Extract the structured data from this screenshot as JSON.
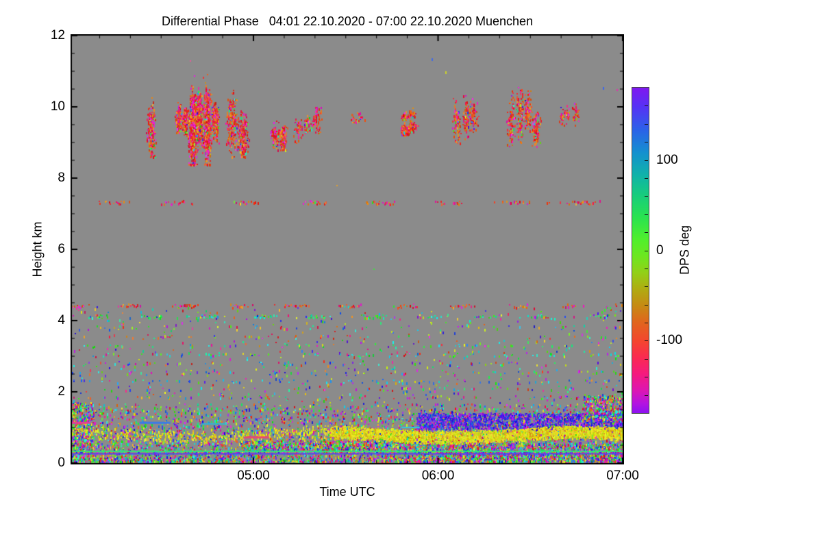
{
  "page": {
    "background": "#ffffff"
  },
  "chart_data": {
    "type": "heatmap",
    "title": "Differential Phase   04:01 22.10.2020 - 07:00 22.10.2020 Muenchen",
    "xlabel": "Time UTC",
    "ylabel": "Height km",
    "x_start": "04:01",
    "x_end": "07:00",
    "x_range_minutes": [
      0,
      179
    ],
    "x_ticks": [
      {
        "t": 59,
        "label": "05:00"
      },
      {
        "t": 119,
        "label": "06:00"
      },
      {
        "t": 179,
        "label": "07:00"
      }
    ],
    "x_minor_first": 9,
    "x_minor_step": 10,
    "y_range_km": [
      0,
      12
    ],
    "y_ticks": [
      0,
      2,
      4,
      6,
      8,
      10,
      12
    ],
    "y_minor_step": 0.5,
    "no_data_color": "#8b8b8b",
    "frame_color": "#000000",
    "colorbar": {
      "label": "DPS deg",
      "range": [
        -180,
        180
      ],
      "ticks": [
        {
          "v": 100,
          "label": "100"
        },
        {
          "v": 0,
          "label": "0"
        },
        {
          "v": -100,
          "label": "-100"
        }
      ],
      "minor_step": 20,
      "gradient": [
        {
          "pos": 0.0,
          "color": "#8018f0"
        },
        {
          "pos": 0.06,
          "color": "#5533f5"
        },
        {
          "pos": 0.13,
          "color": "#2b62e8"
        },
        {
          "pos": 0.2,
          "color": "#1490cf"
        },
        {
          "pos": 0.27,
          "color": "#10b3a8"
        },
        {
          "pos": 0.33,
          "color": "#17cc7d"
        },
        {
          "pos": 0.4,
          "color": "#2ae34f"
        },
        {
          "pos": 0.47,
          "color": "#52ef2b"
        },
        {
          "pos": 0.52,
          "color": "#6ee61f"
        },
        {
          "pos": 0.57,
          "color": "#93cf17"
        },
        {
          "pos": 0.62,
          "color": "#b0ab12"
        },
        {
          "pos": 0.67,
          "color": "#c68a14"
        },
        {
          "pos": 0.72,
          "color": "#e0661d"
        },
        {
          "pos": 0.78,
          "color": "#f4452f"
        },
        {
          "pos": 0.83,
          "color": "#fa2a52"
        },
        {
          "pos": 0.88,
          "color": "#f51a7e"
        },
        {
          "pos": 0.93,
          "color": "#dd16b2"
        },
        {
          "pos": 0.97,
          "color": "#b414e0"
        },
        {
          "pos": 1.0,
          "color": "#8d12f2"
        }
      ]
    },
    "palettes": {
      "warm": {
        "ranges": [
          [
            340,
            380
          ],
          [
            10,
            40
          ],
          [
            300,
            335
          ]
        ],
        "weights": [
          0.4,
          0.3,
          0.2
        ],
        "wild": 0.1
      },
      "any": {
        "ranges": [
          [
            0,
            360
          ]
        ],
        "weights": [
          1
        ],
        "wild": 0
      },
      "yellow": {
        "ranges": [
          [
            50,
            72
          ],
          [
            35,
            50
          ]
        ],
        "weights": [
          0.8,
          0.12
        ],
        "wild": 0.08
      },
      "blue_purple": {
        "ranges": [
          [
            215,
            290
          ]
        ],
        "weights": [
          1
        ],
        "wild": 0.08
      },
      "green_cyan": {
        "ranges": [
          [
            95,
            190
          ]
        ],
        "weights": [
          1
        ],
        "wild": 0.12
      },
      "cyan_blue": {
        "ranges": [
          [
            175,
            235
          ]
        ],
        "weights": [
          1
        ],
        "wild": 0.12
      }
    },
    "features": {
      "clouds": [
        {
          "t0": 24.5,
          "t1": 27.5,
          "h0": 8.6,
          "h1": 10.4,
          "n": 180,
          "streaks": 1
        },
        {
          "t0": 33.5,
          "t1": 37.5,
          "h0": 8.8,
          "h1": 10.2,
          "n": 300,
          "streaks": 2
        },
        {
          "t0": 37.5,
          "t1": 45.0,
          "h0": 8.4,
          "h1": 11.0,
          "n": 1300,
          "streaks": 3
        },
        {
          "t0": 45.0,
          "t1": 47.5,
          "h0": 8.6,
          "h1": 10.3,
          "n": 200,
          "streaks": 1
        },
        {
          "t0": 50.0,
          "t1": 57.0,
          "h0": 8.6,
          "h1": 10.5,
          "n": 430,
          "streaks": 2
        },
        {
          "t0": 64.0,
          "t1": 70.0,
          "h0": 8.8,
          "h1": 9.7,
          "n": 190,
          "streaks": 2
        },
        {
          "t0": 71.5,
          "t1": 81.5,
          "h0": 9.0,
          "h1": 10.0,
          "n": 140,
          "streaks": 3
        },
        {
          "t0": 91.5,
          "t1": 95.5,
          "h0": 9.4,
          "h1": 9.9,
          "n": 25,
          "streaks": 1
        },
        {
          "t0": 106.5,
          "t1": 112.5,
          "h0": 9.2,
          "h1": 9.6,
          "n": 260,
          "streaks": 2
        },
        {
          "t0": 106.5,
          "t1": 112.5,
          "h0": 9.5,
          "h1": 10.0,
          "n": 60,
          "streaks": 2
        },
        {
          "t0": 123.5,
          "t1": 132.0,
          "h0": 9.0,
          "h1": 10.35,
          "n": 240,
          "streaks": 3
        },
        {
          "t0": 141.0,
          "t1": 151.7,
          "h0": 8.9,
          "h1": 10.55,
          "n": 390,
          "streaks": 4
        },
        {
          "t0": 158.0,
          "t1": 164.5,
          "h0": 9.3,
          "h1": 10.25,
          "n": 90,
          "streaks": 3
        }
      ],
      "dots": [
        {
          "t": 117.0,
          "h": 11.35,
          "color": "#3f6ae8"
        },
        {
          "t": 121.5,
          "h": 11.0,
          "color": "#cdd32a"
        },
        {
          "t": 38.5,
          "h": 11.3,
          "color": "#e8589a"
        },
        {
          "t": 98.0,
          "h": 5.45,
          "color": "#44dd44"
        },
        {
          "t": 172.7,
          "h": 10.55,
          "color": "#3a66ee"
        },
        {
          "t": 177.0,
          "h": 10.5,
          "color": "#dd33aa"
        },
        {
          "t": 86.0,
          "h": 7.8,
          "color": "#e0a030"
        }
      ],
      "speckle_lines": [
        {
          "h": 7.32,
          "t0": 0,
          "t1": 179,
          "palette": "warm",
          "density": 0.3,
          "cluster": 11
        },
        {
          "h": 4.42,
          "t0": 0,
          "t1": 179,
          "palette": "warm",
          "density": 0.34,
          "cluster": 9
        },
        {
          "h": 4.12,
          "t0": 0,
          "t1": 179,
          "palette": "green_cyan",
          "density": 0.3,
          "cluster": 9
        },
        {
          "h": 3.82,
          "t0": 0,
          "t1": 179,
          "palette": "any",
          "density": 0.08
        },
        {
          "h": 3.55,
          "t0": 0,
          "t1": 95,
          "palette": "warm",
          "density": 0.1
        },
        {
          "h": 3.3,
          "t0": 0,
          "t1": 179,
          "palette": "green_cyan",
          "density": 0.1
        },
        {
          "h": 3.05,
          "t0": 0,
          "t1": 179,
          "palette": "green_cyan",
          "density": 0.16,
          "cluster": 8
        },
        {
          "h": 2.8,
          "t0": 0,
          "t1": 179,
          "palette": "any",
          "density": 0.14
        },
        {
          "h": 2.55,
          "t0": 0,
          "t1": 179,
          "palette": "any",
          "density": 0.1
        },
        {
          "h": 2.3,
          "t0": 0,
          "t1": 179,
          "palette": "cyan_blue",
          "density": 0.13
        },
        {
          "h": 2.1,
          "t0": 0,
          "t1": 179,
          "palette": "any",
          "density": 0.09
        },
        {
          "h": 1.85,
          "t0": 0,
          "t1": 179,
          "palette": "any",
          "density": 0.17
        },
        {
          "h": 1.62,
          "t0": 0,
          "t1": 179,
          "palette": "any",
          "density": 0.22
        }
      ],
      "sprinkle": {
        "t0": 0,
        "t1": 179,
        "h0": 1.5,
        "h1": 4.4,
        "n": 650,
        "palette": "any"
      },
      "noise_regions": [
        {
          "t0": 0,
          "t1": 179,
          "h0": 0.05,
          "h1": 1.55,
          "n": 5200,
          "palette": "any",
          "bias_low": true
        },
        {
          "t0": 112,
          "t1": 179,
          "h0": 0.95,
          "h1": 1.4,
          "n": 1700,
          "palette": "blue_purple"
        },
        {
          "t0": 112,
          "t1": 179,
          "h0": 0.05,
          "h1": 0.55,
          "n": 1500,
          "palette": "any"
        },
        {
          "t0": 0,
          "t1": 7,
          "h0": 0.1,
          "h1": 1.7,
          "n": 500,
          "palette": "any"
        },
        {
          "t0": 166,
          "t1": 179,
          "h0": 1.2,
          "h1": 1.9,
          "n": 400,
          "palette": "any"
        },
        {
          "t0": 55,
          "t1": 112,
          "h0": 0.35,
          "h1": 0.62,
          "n": 750,
          "palette": "any"
        }
      ],
      "yellow_band": {
        "t0": 0,
        "t1": 179,
        "dense_from": 84,
        "center": 0.8,
        "amp": 0.07,
        "halfwidth": 0.17,
        "n_dense": 5200,
        "n_sparse": 450,
        "palette": "yellow"
      },
      "hlines": [
        {
          "h": 0.33,
          "t0": 0,
          "t1": 179,
          "color": "#2ee87a",
          "w": 2
        },
        {
          "h": 0.26,
          "t0": 0,
          "t1": 179,
          "color": "#5a3cf0",
          "w": 2
        },
        {
          "h": 1.13,
          "t0": 0,
          "t1": 6,
          "color": "#e83a9a",
          "w": 3
        },
        {
          "h": 1.13,
          "t0": 22,
          "t1": 32,
          "color": "#3a7ae8",
          "w": 3
        },
        {
          "h": 1.1,
          "t0": 42,
          "t1": 50,
          "color": "#2ab8d8",
          "w": 2
        },
        {
          "h": 0.72,
          "t0": 56,
          "t1": 64,
          "color": "#e84a70",
          "w": 3
        },
        {
          "h": 1.0,
          "t0": 107,
          "t1": 113,
          "color": "#30c8e0",
          "w": 2
        }
      ]
    }
  }
}
